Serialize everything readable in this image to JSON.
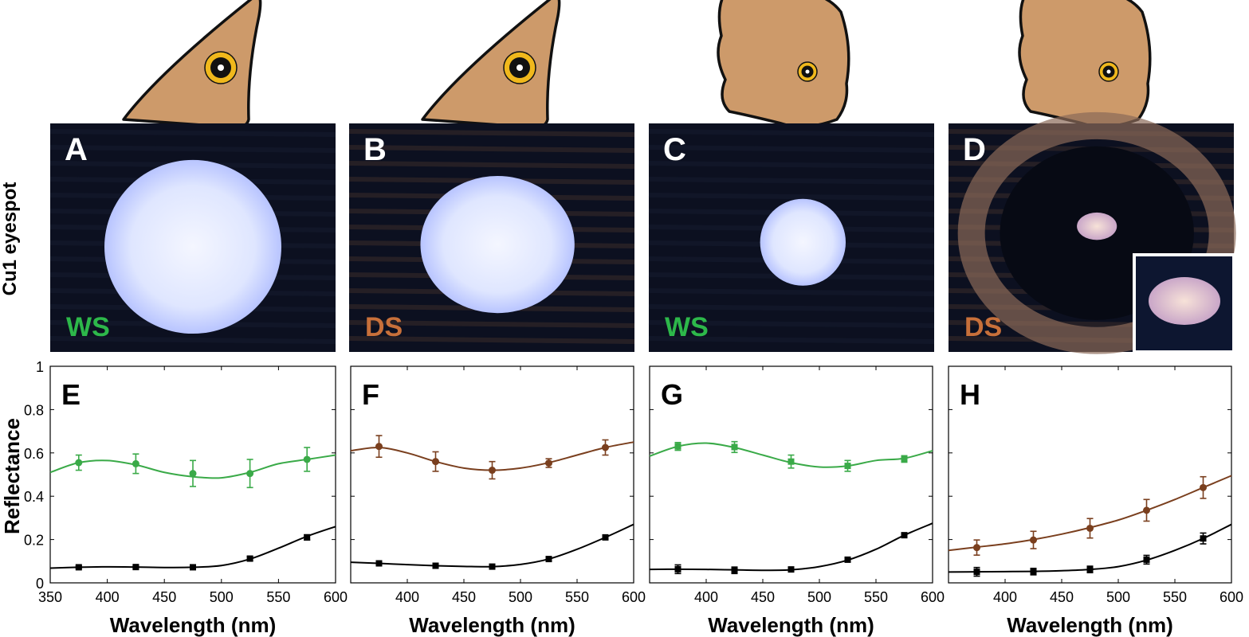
{
  "colors": {
    "ws": "#2db84a",
    "ds": "#c8703a",
    "ds_line": "#7a3f1e",
    "ws_line": "#3aaa48",
    "black_series": "#000000",
    "wing_fill": "#cd9a6a",
    "eyespot_ring": "#f0b81c",
    "photo_bg": "#0c1020"
  },
  "figure": {
    "row_label": "Cu1 eyespot",
    "panels": [
      {
        "letter": "A",
        "wing": "forewing",
        "eyespot": "large",
        "spot": "large",
        "tag": "WS",
        "tag_color": "ws"
      },
      {
        "letter": "B",
        "wing": "forewing",
        "eyespot": "large",
        "spot": "medium",
        "tag": "DS",
        "tag_color": "ds"
      },
      {
        "letter": "C",
        "wing": "hindwing",
        "eyespot": "small",
        "spot": "small",
        "tag": "WS",
        "tag_color": "ws"
      },
      {
        "letter": "D",
        "wing": "hindwing",
        "eyespot": "small",
        "spot": "tiny-with-inset",
        "tag": "DS",
        "tag_color": "ds"
      }
    ]
  },
  "chart_data": [
    {
      "type": "line",
      "letter": "E",
      "xlabel": "Wavelength (nm)",
      "ylabel": "Reflectance",
      "xlim": [
        350,
        600
      ],
      "ylim": [
        0,
        1
      ],
      "xticks": [
        "350",
        "400",
        "450",
        "500",
        "550",
        "600"
      ],
      "yticks": [
        "0",
        "0.2",
        "0.4",
        "0.6",
        "0.8",
        "1"
      ],
      "show_y_ticklabels": true,
      "series": [
        {
          "color": "ws_line",
          "marker": "circle",
          "curve": {
            "x": [
              350,
              375,
              400,
              425,
              450,
              475,
              500,
              525,
              550,
              575,
              600
            ],
            "y": [
              0.51,
              0.555,
              0.565,
              0.545,
              0.51,
              0.49,
              0.485,
              0.51,
              0.55,
              0.57,
              0.59
            ]
          },
          "points": {
            "x": [
              375,
              425,
              475,
              525,
              575
            ],
            "y": [
              0.555,
              0.55,
              0.505,
              0.505,
              0.57
            ],
            "err": [
              0.035,
              0.045,
              0.06,
              0.065,
              0.055
            ]
          }
        },
        {
          "color": "black_series",
          "marker": "square",
          "curve": {
            "x": [
              350,
              375,
              400,
              425,
              450,
              475,
              500,
              525,
              550,
              575,
              600
            ],
            "y": [
              0.068,
              0.072,
              0.074,
              0.073,
              0.071,
              0.072,
              0.08,
              0.11,
              0.16,
              0.215,
              0.26
            ]
          },
          "points": {
            "x": [
              375,
              425,
              475,
              525,
              575
            ],
            "y": [
              0.072,
              0.073,
              0.072,
              0.112,
              0.21
            ],
            "err": [
              0.006,
              0.006,
              0.006,
              0.01,
              0.012
            ]
          }
        }
      ]
    },
    {
      "type": "line",
      "letter": "F",
      "xlabel": "Wavelength (nm)",
      "ylabel": "",
      "xlim": [
        350,
        600
      ],
      "ylim": [
        0,
        1
      ],
      "xticks": [
        "400",
        "450",
        "500",
        "550",
        "600"
      ],
      "yticks": [],
      "show_y_ticklabels": false,
      "series": [
        {
          "color": "ds_line",
          "marker": "circle",
          "curve": {
            "x": [
              350,
              375,
              400,
              425,
              450,
              475,
              500,
              525,
              550,
              575,
              600
            ],
            "y": [
              0.61,
              0.625,
              0.6,
              0.56,
              0.53,
              0.52,
              0.53,
              0.555,
              0.59,
              0.625,
              0.65
            ]
          },
          "points": {
            "x": [
              375,
              425,
              475,
              525,
              575
            ],
            "y": [
              0.63,
              0.56,
              0.52,
              0.553,
              0.625
            ],
            "err": [
              0.05,
              0.045,
              0.04,
              0.02,
              0.035
            ]
          }
        },
        {
          "color": "black_series",
          "marker": "square",
          "curve": {
            "x": [
              350,
              375,
              400,
              425,
              450,
              475,
              500,
              525,
              550,
              575,
              600
            ],
            "y": [
              0.095,
              0.09,
              0.084,
              0.079,
              0.076,
              0.075,
              0.085,
              0.11,
              0.155,
              0.21,
              0.27
            ]
          },
          "points": {
            "x": [
              375,
              425,
              475,
              525,
              575
            ],
            "y": [
              0.09,
              0.079,
              0.075,
              0.11,
              0.21
            ],
            "err": [
              0.006,
              0.006,
              0.006,
              0.008,
              0.01
            ]
          }
        }
      ]
    },
    {
      "type": "line",
      "letter": "G",
      "xlabel": "Wavelength (nm)",
      "ylabel": "",
      "xlim": [
        350,
        600
      ],
      "ylim": [
        0,
        1
      ],
      "xticks": [
        "400",
        "450",
        "500",
        "550",
        "600"
      ],
      "yticks": [],
      "show_y_ticklabels": false,
      "series": [
        {
          "color": "ws_line",
          "marker": "square",
          "curve": {
            "x": [
              350,
              375,
              400,
              425,
              450,
              475,
              500,
              525,
              550,
              575,
              600
            ],
            "y": [
              0.585,
              0.63,
              0.645,
              0.625,
              0.59,
              0.555,
              0.535,
              0.54,
              0.565,
              0.575,
              0.61
            ]
          },
          "points": {
            "x": [
              375,
              425,
              475,
              525,
              575
            ],
            "y": [
              0.63,
              0.627,
              0.56,
              0.54,
              0.572
            ],
            "err": [
              0.018,
              0.025,
              0.03,
              0.025,
              0.015
            ]
          }
        },
        {
          "color": "black_series",
          "marker": "square",
          "curve": {
            "x": [
              350,
              375,
              400,
              425,
              450,
              475,
              500,
              525,
              550,
              575,
              600
            ],
            "y": [
              0.062,
              0.063,
              0.062,
              0.06,
              0.058,
              0.06,
              0.075,
              0.105,
              0.155,
              0.22,
              0.275
            ]
          },
          "points": {
            "x": [
              375,
              425,
              475,
              525,
              575
            ],
            "y": [
              0.063,
              0.058,
              0.062,
              0.107,
              0.22
            ],
            "err": [
              0.02,
              0.015,
              0.008,
              0.008,
              0.008
            ]
          }
        }
      ]
    },
    {
      "type": "line",
      "letter": "H",
      "xlabel": "Wavelength (nm)",
      "ylabel": "",
      "xlim": [
        350,
        600
      ],
      "ylim": [
        0,
        1
      ],
      "xticks": [
        "400",
        "450",
        "500",
        "550",
        "600"
      ],
      "yticks": [],
      "show_y_ticklabels": false,
      "series": [
        {
          "color": "ds_line",
          "marker": "circle",
          "curve": {
            "x": [
              350,
              375,
              400,
              425,
              450,
              475,
              500,
              525,
              550,
              575,
              600
            ],
            "y": [
              0.15,
              0.165,
              0.18,
              0.2,
              0.225,
              0.255,
              0.29,
              0.335,
              0.385,
              0.44,
              0.495
            ]
          },
          "points": {
            "x": [
              375,
              425,
              475,
              525,
              575
            ],
            "y": [
              0.163,
              0.198,
              0.252,
              0.335,
              0.44
            ],
            "err": [
              0.035,
              0.04,
              0.045,
              0.05,
              0.05
            ]
          }
        },
        {
          "color": "black_series",
          "marker": "square",
          "curve": {
            "x": [
              350,
              375,
              400,
              425,
              450,
              475,
              500,
              525,
              550,
              575,
              600
            ],
            "y": [
              0.05,
              0.051,
              0.052,
              0.053,
              0.056,
              0.062,
              0.075,
              0.105,
              0.15,
              0.205,
              0.27
            ]
          },
          "points": {
            "x": [
              375,
              425,
              475,
              525,
              575
            ],
            "y": [
              0.051,
              0.052,
              0.062,
              0.107,
              0.205
            ],
            "err": [
              0.02,
              0.015,
              0.015,
              0.02,
              0.025
            ]
          }
        }
      ]
    }
  ]
}
